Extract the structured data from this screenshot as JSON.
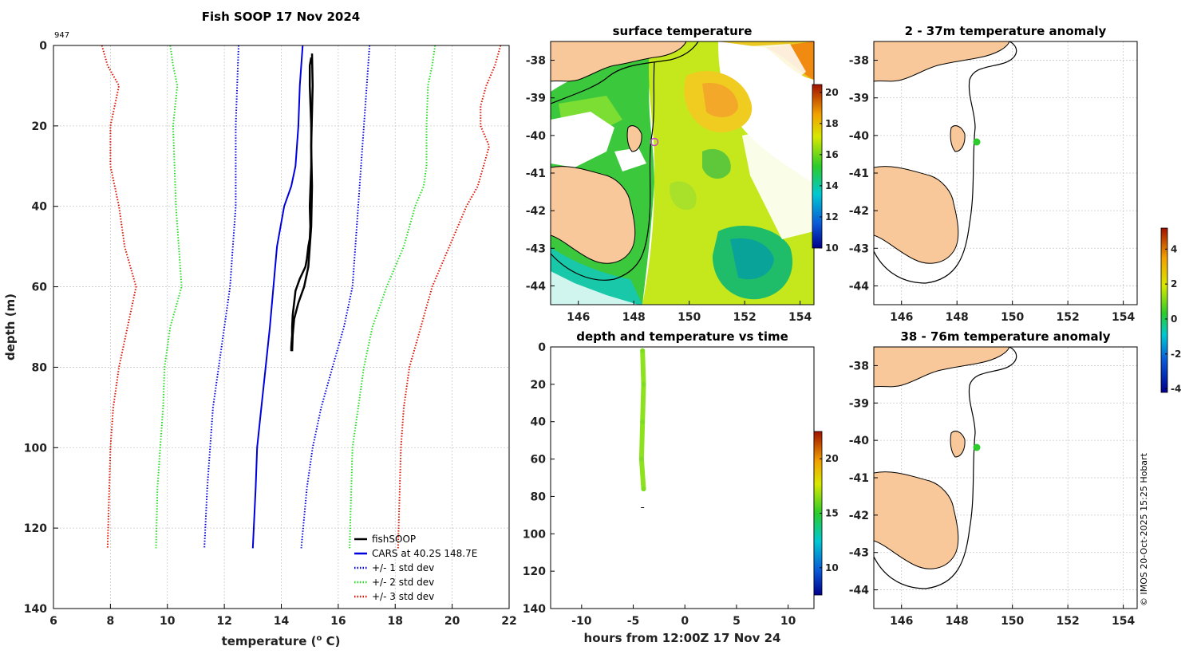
{
  "figure": {
    "credit": "© IMOS 20-Oct-2025 15:25 Hobart",
    "colors": {
      "land": "#f8c89a",
      "cars": "#0000dd",
      "std1": "#0000dd",
      "std2": "#22dd22",
      "std3": "#dd1100",
      "fish": "#000000"
    }
  },
  "profile": {
    "title": "Fish SOOP 17 Nov 2024",
    "id_label": "947",
    "xlabel": "temperature (o C)",
    "xlabel_main": "temperature (",
    "xlabel_sup": "o",
    "xlabel_tail": " C)",
    "ylabel": "depth (m)"
  },
  "surface": {
    "title": "surface temperature"
  },
  "timeplot": {
    "title": "depth and temperature vs time",
    "xlabel": "hours from 12:00Z 17 Nov 24"
  },
  "anomaly1": {
    "title": "2 - 37m temperature anomaly"
  },
  "anomaly2": {
    "title": "38 - 76m temperature anomaly"
  },
  "chart_data": [
    {
      "name": "profile",
      "type": "line",
      "title": "Fish SOOP 17 Nov 2024",
      "xlabel": "temperature (o C)",
      "ylabel": "depth (m)",
      "xlim": [
        6,
        22
      ],
      "ylim": [
        140,
        0
      ],
      "xticks": [
        "6",
        "8",
        "10",
        "12",
        "14",
        "16",
        "18",
        "20",
        "22"
      ],
      "yticks": [
        "0",
        "20",
        "40",
        "60",
        "80",
        "100",
        "120",
        "140"
      ],
      "grid": true,
      "legend_position": "bottom-right",
      "legend": [
        "fishSOOP",
        "CARS at 40.2S 148.7E",
        "+/- 1 std dev",
        "+/- 2 std dev",
        "+/- 3 std dev"
      ],
      "series": [
        {
          "name": "fishSOOP",
          "style": "solid",
          "color": "#000000",
          "x": [
            15.05,
            15.0,
            15.0,
            15.05,
            15.05,
            15.0,
            15.02,
            15.0,
            14.95,
            14.9,
            14.85,
            14.65,
            14.5,
            14.45,
            14.4,
            14.38,
            14.38,
            14.36,
            14.35,
            14.35
          ],
          "y": [
            3,
            5,
            10,
            20,
            30,
            40,
            45,
            48,
            50,
            53,
            55,
            58,
            61,
            64,
            67,
            70,
            72,
            74,
            75,
            76
          ]
        },
        {
          "name": "fishSOOP (up)",
          "style": "solid",
          "color": "#000000",
          "x": [
            14.38,
            14.4,
            14.45,
            14.6,
            14.8,
            14.95,
            15.0,
            15.05,
            15.08,
            15.05,
            15.1,
            15.08
          ],
          "y": [
            76,
            72,
            68,
            64,
            60,
            55,
            50,
            45,
            35,
            25,
            10,
            2
          ]
        },
        {
          "name": "CARS at 40.2S 148.7E",
          "style": "solid",
          "color": "#0000dd",
          "x": [
            14.75,
            14.65,
            14.6,
            14.55,
            14.5,
            14.35,
            14.1,
            13.85,
            13.6,
            13.45,
            13.3,
            13.15,
            13.1,
            13.0
          ],
          "y": [
            0,
            10,
            20,
            25,
            30,
            35,
            40,
            50,
            70,
            80,
            90,
            100,
            110,
            125
          ]
        },
        {
          "name": "-1 std",
          "style": "dotted",
          "color": "#0000dd",
          "x": [
            12.5,
            12.45,
            12.4,
            12.4,
            12.4,
            12.3,
            12.2,
            11.9,
            11.6,
            11.5,
            11.4,
            11.3
          ],
          "y": [
            0,
            10,
            20,
            30,
            40,
            50,
            60,
            75,
            90,
            100,
            110,
            125
          ]
        },
        {
          "name": "+1 std",
          "style": "dotted",
          "color": "#0000dd",
          "x": [
            17.1,
            17.0,
            16.9,
            16.8,
            16.7,
            16.6,
            16.5,
            16.2,
            15.8,
            15.4,
            15.1,
            14.9,
            14.7
          ],
          "y": [
            0,
            10,
            20,
            30,
            40,
            50,
            60,
            70,
            80,
            90,
            100,
            110,
            125
          ]
        },
        {
          "name": "-2 std",
          "style": "dotted",
          "color": "#22dd22",
          "x": [
            10.1,
            10.2,
            10.35,
            10.2,
            10.25,
            10.3,
            10.5,
            10.1,
            9.9,
            9.85,
            9.75,
            9.65,
            9.6
          ],
          "y": [
            0,
            5,
            10,
            20,
            30,
            40,
            60,
            70,
            80,
            90,
            100,
            110,
            125
          ]
        },
        {
          "name": "+2 std",
          "style": "dotted",
          "color": "#22dd22",
          "x": [
            19.4,
            19.3,
            19.15,
            19.1,
            19.1,
            19.0,
            18.7,
            18.3,
            17.7,
            17.2,
            16.9,
            16.7,
            16.5,
            16.4
          ],
          "y": [
            0,
            5,
            10,
            20,
            30,
            35,
            40,
            50,
            60,
            70,
            80,
            90,
            100,
            125
          ]
        },
        {
          "name": "-3 std",
          "style": "dotted",
          "color": "#dd1100",
          "x": [
            7.7,
            7.9,
            8.3,
            8.0,
            8.0,
            8.3,
            8.5,
            8.9,
            8.6,
            8.3,
            8.1,
            8.0,
            7.9
          ],
          "y": [
            0,
            5,
            10,
            20,
            30,
            40,
            50,
            60,
            70,
            80,
            90,
            100,
            125
          ]
        },
        {
          "name": "+3 std",
          "style": "dotted",
          "color": "#dd1100",
          "x": [
            21.7,
            21.5,
            21.2,
            21.0,
            21.0,
            21.3,
            21.1,
            20.9,
            20.5,
            19.9,
            19.3,
            18.9,
            18.5,
            18.3,
            18.2,
            18.1
          ],
          "y": [
            0,
            5,
            10,
            15,
            20,
            25,
            30,
            35,
            40,
            50,
            60,
            70,
            80,
            90,
            100,
            125
          ]
        }
      ]
    },
    {
      "name": "surface temperature",
      "type": "heatmap",
      "title": "surface temperature",
      "xlim": [
        145,
        154.5
      ],
      "ylim": [
        -44.5,
        -37.5
      ],
      "xticks": [
        "146",
        "148",
        "150",
        "152",
        "154"
      ],
      "yticks": [
        "-38",
        "-39",
        "-40",
        "-41",
        "-42",
        "-43",
        "-44"
      ],
      "colorbar": {
        "min": 10,
        "max": 20.5,
        "ticks": [
          "10",
          "12",
          "14",
          "16",
          "18",
          "20"
        ]
      },
      "marker": {
        "lon": 148.7,
        "lat": -40.2,
        "color": "#cc44cc"
      }
    },
    {
      "name": "depth and temperature vs time",
      "type": "scatter",
      "title": "depth and temperature vs time",
      "xlabel": "hours from 12:00Z 17 Nov 24",
      "xlim": [
        -13,
        12.5
      ],
      "ylim": [
        140,
        0
      ],
      "xticks": [
        "-10",
        "-5",
        "0",
        "5",
        "10"
      ],
      "yticks": [
        "0",
        "20",
        "40",
        "60",
        "80",
        "100",
        "120",
        "140"
      ],
      "colorbar": {
        "min": 7.5,
        "max": 22.5,
        "ticks": [
          "10",
          "15",
          "20"
        ]
      },
      "points": {
        "time_hours": [
          -4.1,
          -4.0,
          -4.1,
          -4.2,
          -4.0
        ],
        "depth": [
          2,
          20,
          40,
          60,
          76
        ],
        "temperature_c": [
          15.0,
          15.0,
          15.0,
          14.6,
          14.4
        ]
      }
    },
    {
      "name": "2 - 37m temperature anomaly",
      "type": "heatmap",
      "title": "2 - 37m temperature anomaly",
      "xlim": [
        145,
        154.5
      ],
      "ylim": [
        -44.5,
        -37.5
      ],
      "xticks": [
        "146",
        "148",
        "150",
        "152",
        "154"
      ],
      "yticks": [
        "-38",
        "-39",
        "-40",
        "-41",
        "-42",
        "-43",
        "-44"
      ],
      "colorbar": {
        "min": -4.2,
        "max": 5.2,
        "ticks": [
          "4",
          "2",
          "0",
          "-2",
          "-4"
        ]
      },
      "point": {
        "lon": 148.7,
        "lat": -40.2,
        "anomaly": 0.3
      }
    },
    {
      "name": "38 - 76m temperature anomaly",
      "type": "heatmap",
      "title": "38 - 76m temperature anomaly",
      "xlim": [
        145,
        154.5
      ],
      "ylim": [
        -44.5,
        -37.5
      ],
      "xticks": [
        "146",
        "148",
        "150",
        "152",
        "154"
      ],
      "yticks": [
        "-38",
        "-39",
        "-40",
        "-41",
        "-42",
        "-43",
        "-44"
      ],
      "point": {
        "lon": 148.7,
        "lat": -40.2,
        "anomaly": 0.4
      }
    }
  ]
}
